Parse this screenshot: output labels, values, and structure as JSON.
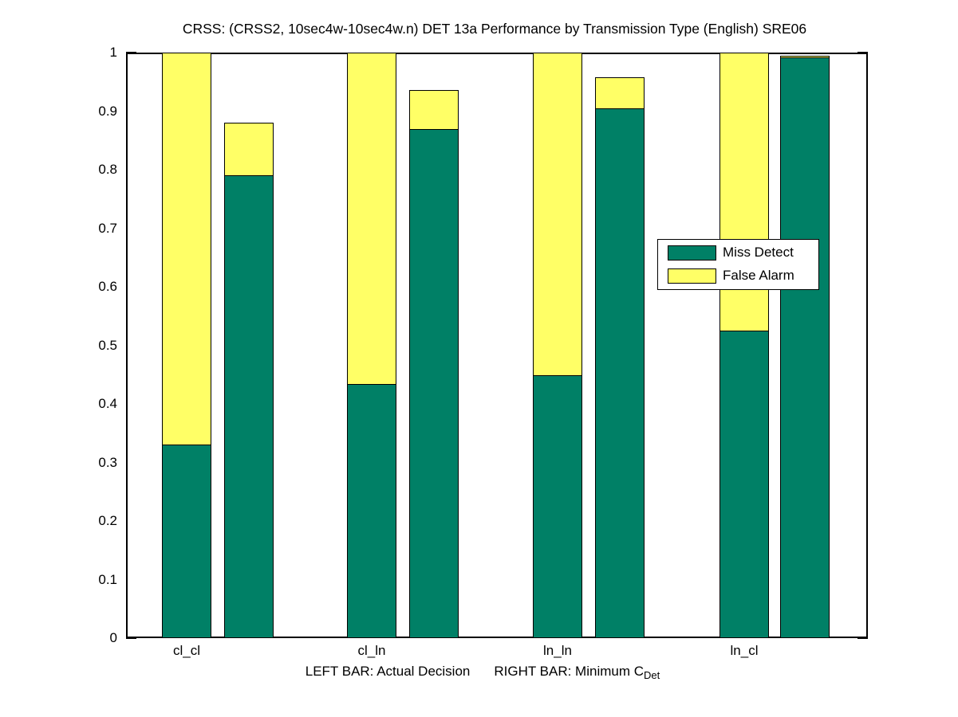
{
  "title": "CRSS: (CRSS2, 10sec4w-10sec4w.n) DET 13a Performance by Transmission Type (English) SRE06",
  "colors": {
    "miss_detect": "#008066",
    "false_alarm": "#FFFF66",
    "axis": "#000000",
    "background": "#FFFFFF"
  },
  "chart_data": {
    "type": "bar",
    "stacked": true,
    "title": "CRSS: (CRSS2, 10sec4w-10sec4w.n) DET 13a Performance by Transmission Type (English) SRE06",
    "categories": [
      "cl_cl",
      "cl_ln",
      "ln_ln",
      "ln_cl"
    ],
    "bar_meaning": {
      "left_bar": "Actual Decision",
      "right_bar": "Minimum C_Det"
    },
    "bar_pairs": [
      {
        "category": "cl_cl",
        "actual_decision": {
          "miss_detect": 0.33,
          "false_alarm": 0.67,
          "total": 1.0
        },
        "minimum_cdet": {
          "miss_detect": 0.79,
          "false_alarm": 0.09,
          "total": 0.88
        }
      },
      {
        "category": "cl_ln",
        "actual_decision": {
          "miss_detect": 0.434,
          "false_alarm": 0.566,
          "total": 1.0
        },
        "minimum_cdet": {
          "miss_detect": 0.869,
          "false_alarm": 0.067,
          "total": 0.936
        }
      },
      {
        "category": "ln_ln",
        "actual_decision": {
          "miss_detect": 0.449,
          "false_alarm": 0.551,
          "total": 1.0
        },
        "minimum_cdet": {
          "miss_detect": 0.905,
          "false_alarm": 0.053,
          "total": 0.958
        }
      },
      {
        "category": "ln_cl",
        "actual_decision": {
          "miss_detect": 0.525,
          "false_alarm": 0.475,
          "total": 1.0
        },
        "minimum_cdet": {
          "miss_detect": 0.992,
          "false_alarm": 0.003,
          "total": 0.995
        }
      }
    ],
    "legend": {
      "position": "right-middle",
      "entries": [
        {
          "label": "Miss Detect",
          "color": "#008066"
        },
        {
          "label": "False Alarm",
          "color": "#FFFF66"
        }
      ]
    },
    "ylim": [
      0,
      1
    ],
    "yticks": [
      "0",
      "0.1",
      "0.2",
      "0.3",
      "0.4",
      "0.5",
      "0.6",
      "0.7",
      "0.8",
      "0.9",
      "1"
    ],
    "xlabel": {
      "left": "LEFT BAR: Actual Decision",
      "right_main": "RIGHT BAR: Minimum C",
      "right_sub": "Det"
    },
    "grid": false
  }
}
